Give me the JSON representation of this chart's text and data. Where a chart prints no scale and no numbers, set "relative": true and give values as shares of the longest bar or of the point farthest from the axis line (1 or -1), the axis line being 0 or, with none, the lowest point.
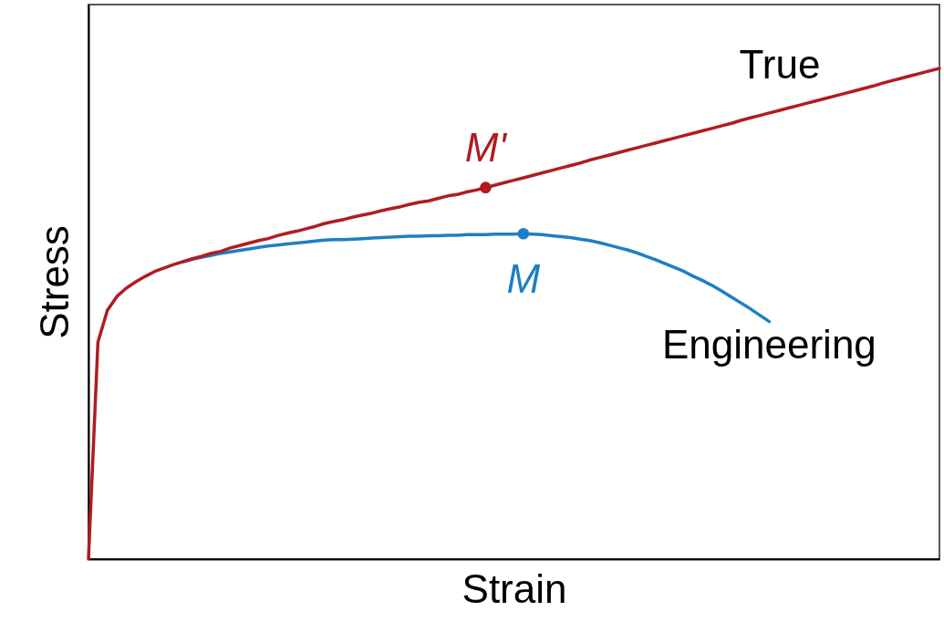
{
  "chart_data": {
    "type": "line",
    "relative": true,
    "xlabel": "Strain",
    "ylabel": "Stress",
    "categories": [
      null,
      null,
      null,
      null,
      null,
      null,
      null,
      null,
      null,
      null,
      null,
      null,
      null,
      null,
      null,
      null,
      null,
      null,
      null,
      null,
      null,
      null,
      null,
      null,
      null,
      null,
      null,
      null,
      null,
      null,
      null,
      null,
      null,
      null,
      null,
      null,
      null,
      null,
      null,
      null,
      null,
      null,
      null,
      null,
      null,
      null,
      null,
      null,
      null,
      null,
      null,
      null,
      null,
      null,
      null,
      null,
      null,
      null,
      null,
      null,
      null,
      null,
      null,
      null,
      null,
      null,
      null,
      null,
      null,
      null,
      null,
      null,
      null,
      null,
      null,
      null,
      null,
      null,
      null,
      null,
      null,
      null,
      null,
      null,
      null,
      null,
      null,
      null,
      null,
      null,
      null
    ],
    "series": [
      {
        "name": "True",
        "color": "#b01c22",
        "values": [
          0,
          0.442,
          0.507,
          0.535,
          0.552,
          0.565,
          0.576,
          0.586,
          0.593,
          0.6,
          0.606,
          0.612,
          0.617,
          0.623,
          0.627,
          0.634,
          0.639,
          0.644,
          0.649,
          0.653,
          0.659,
          0.664,
          0.668,
          0.673,
          0.678,
          0.684,
          0.688,
          0.692,
          0.697,
          0.701,
          0.705,
          0.71,
          0.714,
          0.718,
          0.723,
          0.727,
          0.73,
          0.735,
          0.74,
          0.743,
          0.748,
          0.752,
          0.757,
          0.762,
          0.767,
          0.772,
          0.777,
          0.782,
          0.787,
          0.792,
          0.797,
          0.802,
          0.807,
          0.813,
          0.818,
          0.823,
          0.828,
          0.833,
          0.838,
          0.843,
          0.848,
          0.853,
          0.858,
          0.863,
          0.868,
          0.873,
          0.878,
          0.883,
          0.888,
          0.894,
          0.899,
          0.904,
          0.909,
          0.914,
          0.919,
          0.924,
          0.929,
          0.934,
          0.939,
          0.944,
          0.949,
          0.954,
          0.959,
          0.964,
          0.97,
          0.975,
          0.98,
          0.985,
          0.99,
          0.995,
          1.0
        ]
      },
      {
        "name": "Engineering",
        "color": "#1f7ec2",
        "values": [
          null,
          null,
          null,
          null,
          null,
          null,
          null,
          null,
          null,
          null,
          0.606,
          0.611,
          0.615,
          0.619,
          0.623,
          0.626,
          0.629,
          0.632,
          0.635,
          0.638,
          0.64,
          0.642,
          0.644,
          0.646,
          0.648,
          0.65,
          0.651,
          0.651,
          0.652,
          0.653,
          0.654,
          0.655,
          0.656,
          0.657,
          0.658,
          0.658,
          0.659,
          0.659,
          0.66,
          0.66,
          0.661,
          0.661,
          0.661,
          0.662,
          0.662,
          0.662,
          0.663,
          0.662,
          0.661,
          0.659,
          0.657,
          0.655,
          0.652,
          0.649,
          0.645,
          0.64,
          0.635,
          0.63,
          0.624,
          0.617,
          0.61,
          0.602,
          0.594,
          0.586,
          0.576,
          0.567,
          0.557,
          0.546,
          0.534,
          0.522,
          0.51,
          0.497,
          0.484,
          null,
          null,
          null,
          null,
          null,
          null,
          null,
          null,
          null,
          null,
          null,
          null,
          null,
          null,
          null,
          null,
          null,
          null
        ]
      }
    ],
    "annotations": [
      {
        "text": "M'",
        "y": 0.757
      },
      {
        "text": "M",
        "y": 0.663
      }
    ]
  }
}
